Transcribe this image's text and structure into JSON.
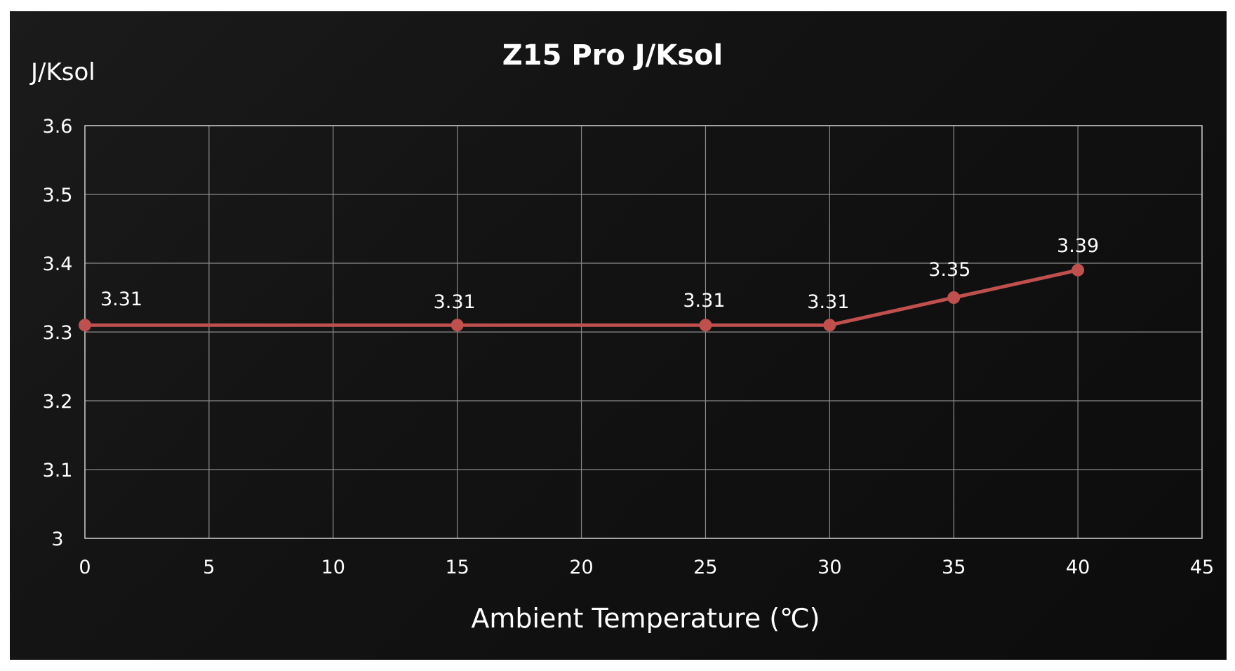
{
  "chart_data": {
    "type": "line",
    "title": "Z15 Pro J/Ksol",
    "ylabel": "J/Ksol",
    "xlabel": "Ambient Temperature (℃)",
    "xlim": [
      0,
      45
    ],
    "ylim": [
      3,
      3.6
    ],
    "x_ticks": [
      "0",
      "5",
      "10",
      "15",
      "20",
      "25",
      "30",
      "35",
      "40",
      "45"
    ],
    "y_ticks": [
      "3",
      "3.1",
      "3.2",
      "3.3",
      "3.4",
      "3.5",
      "3.6"
    ],
    "grid": true,
    "series": [
      {
        "color": "#c0504d",
        "x": [
          0,
          15,
          25,
          30,
          35,
          40
        ],
        "values": [
          3.31,
          3.31,
          3.31,
          3.31,
          3.35,
          3.39
        ],
        "labels": [
          "3.31",
          "3.31",
          "3.31",
          "3.31",
          "3.35",
          "3.39"
        ]
      }
    ]
  }
}
